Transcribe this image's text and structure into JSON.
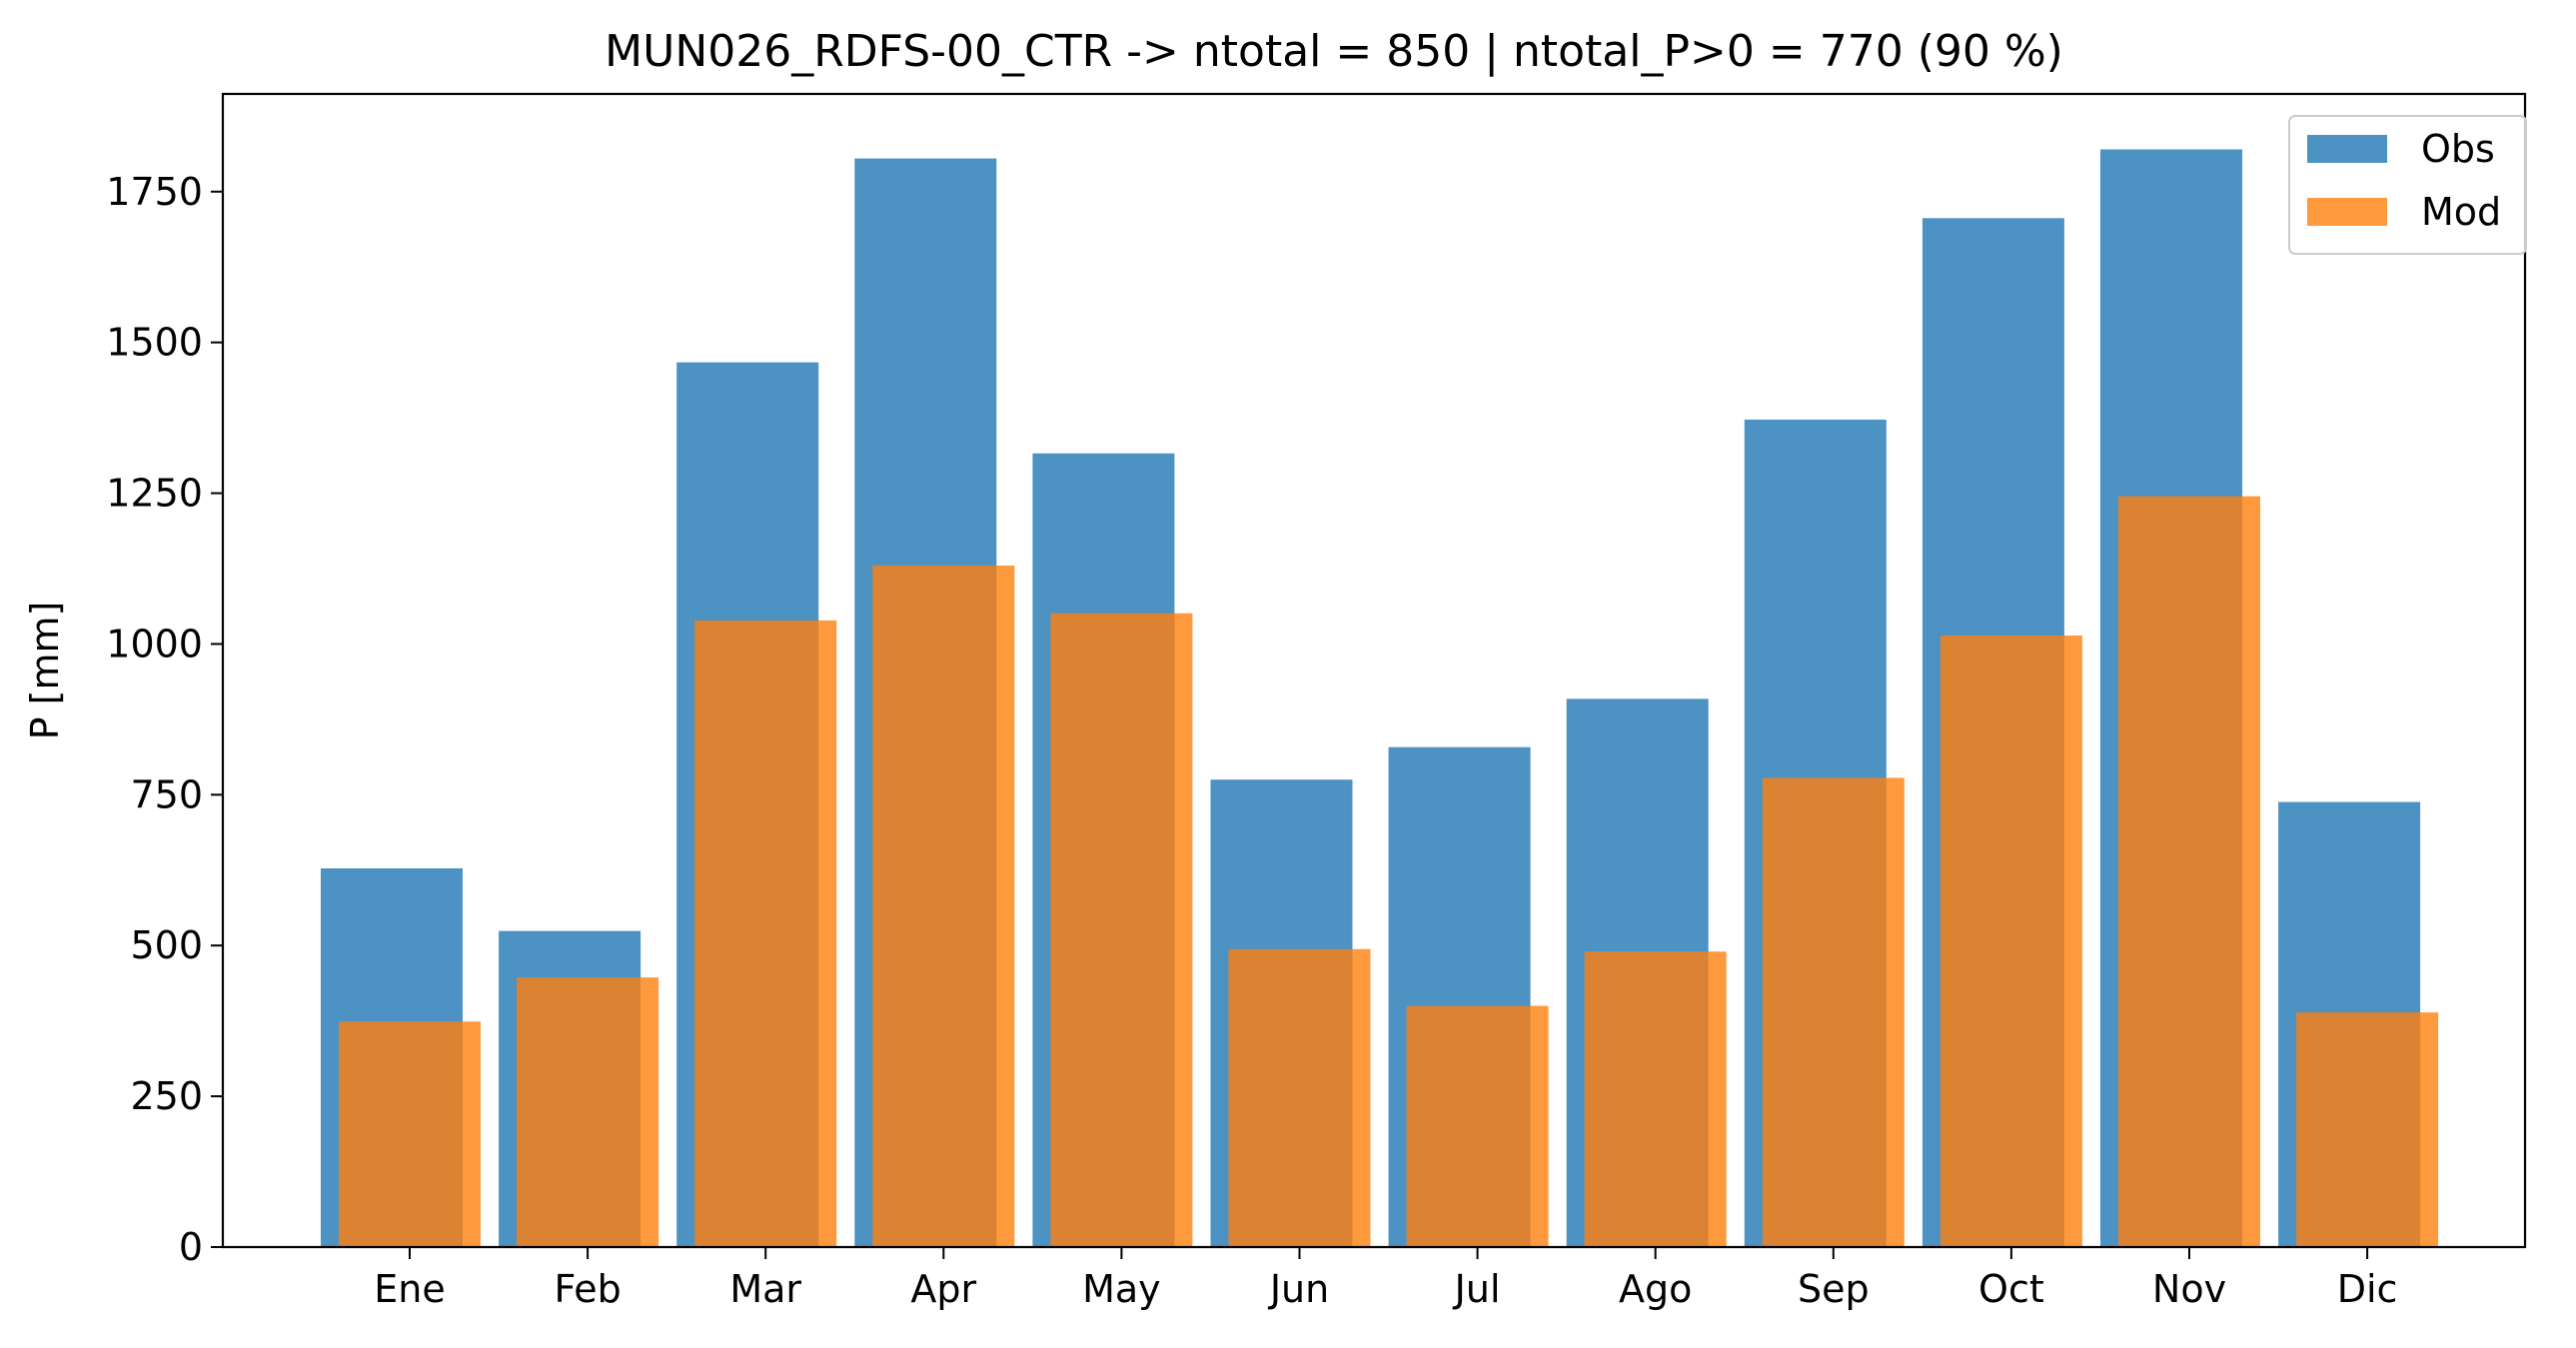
{
  "chart_data": {
    "type": "bar",
    "title": "MUN026_RDFS-00_CTR -> ntotal = 850 | ntotal_P>0 = 770 (90 %)",
    "xlabel": "",
    "ylabel": "P [mm]",
    "categories": [
      "Ene",
      "Feb",
      "Mar",
      "Apr",
      "May",
      "Jun",
      "Jul",
      "Ago",
      "Sep",
      "Oct",
      "Nov",
      "Dic"
    ],
    "series": [
      {
        "name": "Obs",
        "color": "#1f77b4",
        "values": [
          628,
          524,
          1467,
          1805,
          1316,
          775,
          829,
          909,
          1372,
          1706,
          1820,
          738
        ]
      },
      {
        "name": "Mod",
        "color": "#ff7f0e",
        "values": [
          374,
          447,
          1039,
          1130,
          1051,
          494,
          400,
          490,
          778,
          1014,
          1245,
          389
        ]
      }
    ],
    "ylim": [
      0,
      1912
    ],
    "yticks": [
      0,
      250,
      500,
      750,
      1000,
      1250,
      1500,
      1750
    ],
    "grid": false,
    "legend_position": "top-right"
  }
}
